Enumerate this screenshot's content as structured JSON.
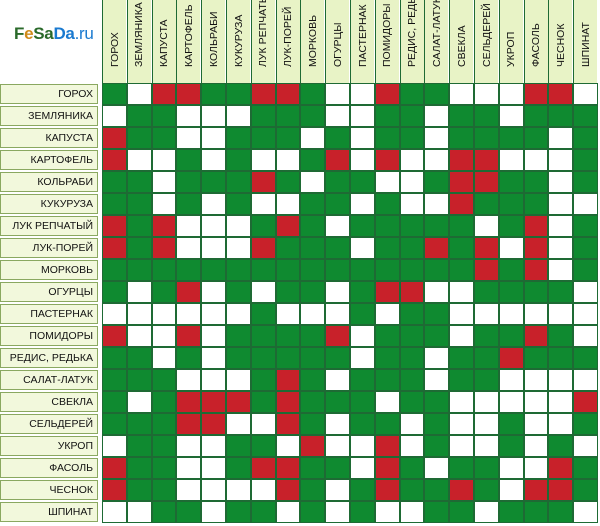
{
  "logo": {
    "part1": "F",
    "part2": "e",
    "part3": "Sa",
    "part4": "Da",
    "part5": ".ru"
  },
  "columns": [
    "ГОРОХ",
    "ЗЕМЛЯНИКА",
    "КАПУСТА",
    "КАРТОФЕЛЬ",
    "КОЛЬРАБИ",
    "КУКУРУЗА",
    "ЛУК РЕПЧАТЫЙ",
    "ЛУК-ПОРЕЙ",
    "МОРКОВЬ",
    "ОГУРЦЫ",
    "ПАСТЕРНАК",
    "ПОМИДОРЫ",
    "РЕДИС, РЕДЬКА",
    "САЛАТ-ЛАТУК",
    "СВЕКЛА",
    "СЕЛЬДЕРЕЙ",
    "УКРОП",
    "ФАСОЛЬ",
    "ЧЕСНОК",
    "ШПИНАТ"
  ],
  "rows": [
    "ГОРОХ",
    "ЗЕМЛЯНИКА",
    "КАПУСТА",
    "КАРТОФЕЛЬ",
    "КОЛЬРАБИ",
    "КУКУРУЗА",
    "ЛУК РЕПЧАТЫЙ",
    "ЛУК-ПОРЕЙ",
    "МОРКОВЬ",
    "ОГУРЦЫ",
    "ПАСТЕРНАК",
    "ПОМИДОРЫ",
    "РЕДИС, РЕДЬКА",
    "САЛАТ-ЛАТУК",
    "СВЕКЛА",
    "СЕЛЬДЕРЕЙ",
    "УКРОП",
    "ФАСОЛЬ",
    "ЧЕСНОК",
    "ШПИНАТ"
  ],
  "legend": {
    "g": "#0f8a30",
    "r": "#c8212a",
    "w": "#ffffff"
  },
  "matrix": [
    "GWRRGGRRGWWRGGWWWRRW",
    "WGGWWWGGGWWGGWGGWGGG",
    "RGGWWGGGWGWGGWGGGGWG",
    "RWWGWGWWGRWRWWRRWWWG",
    "GGWGGGRGWGGWWGRRGGWG",
    "GGWGWGWWGGWGWWRGGGWW",
    "RGRWWWGRGWGGGGGWGRWG",
    "RGRWWWRGGGWGGRGRWRWG",
    "GGGGGGGGGGGGGGGRGRWG",
    "GWGRWGWGGWGRRWWGGGGW",
    "WWWWWWGWWWGWGGWWWWWW",
    "RWWRWGGGGRWGGGWGGRGW",
    "GGWGWGGGGGWGGWGGRGGG",
    "GGGWWWGRGWGGGWGGWWWW",
    "GWGRRRGRGGGWGGWWWWWR",
    "GGGRRWWRGWGGWGWWGWWG",
    "WGGWWGGWRWWRWGWWGWGW",
    "RGGWWGRRGGWRGWGGWWRG",
    "RGGWWWWRGWGRGGRGWRRG",
    "WWGGWGGWGWGWWGGWGGGW"
  ]
}
